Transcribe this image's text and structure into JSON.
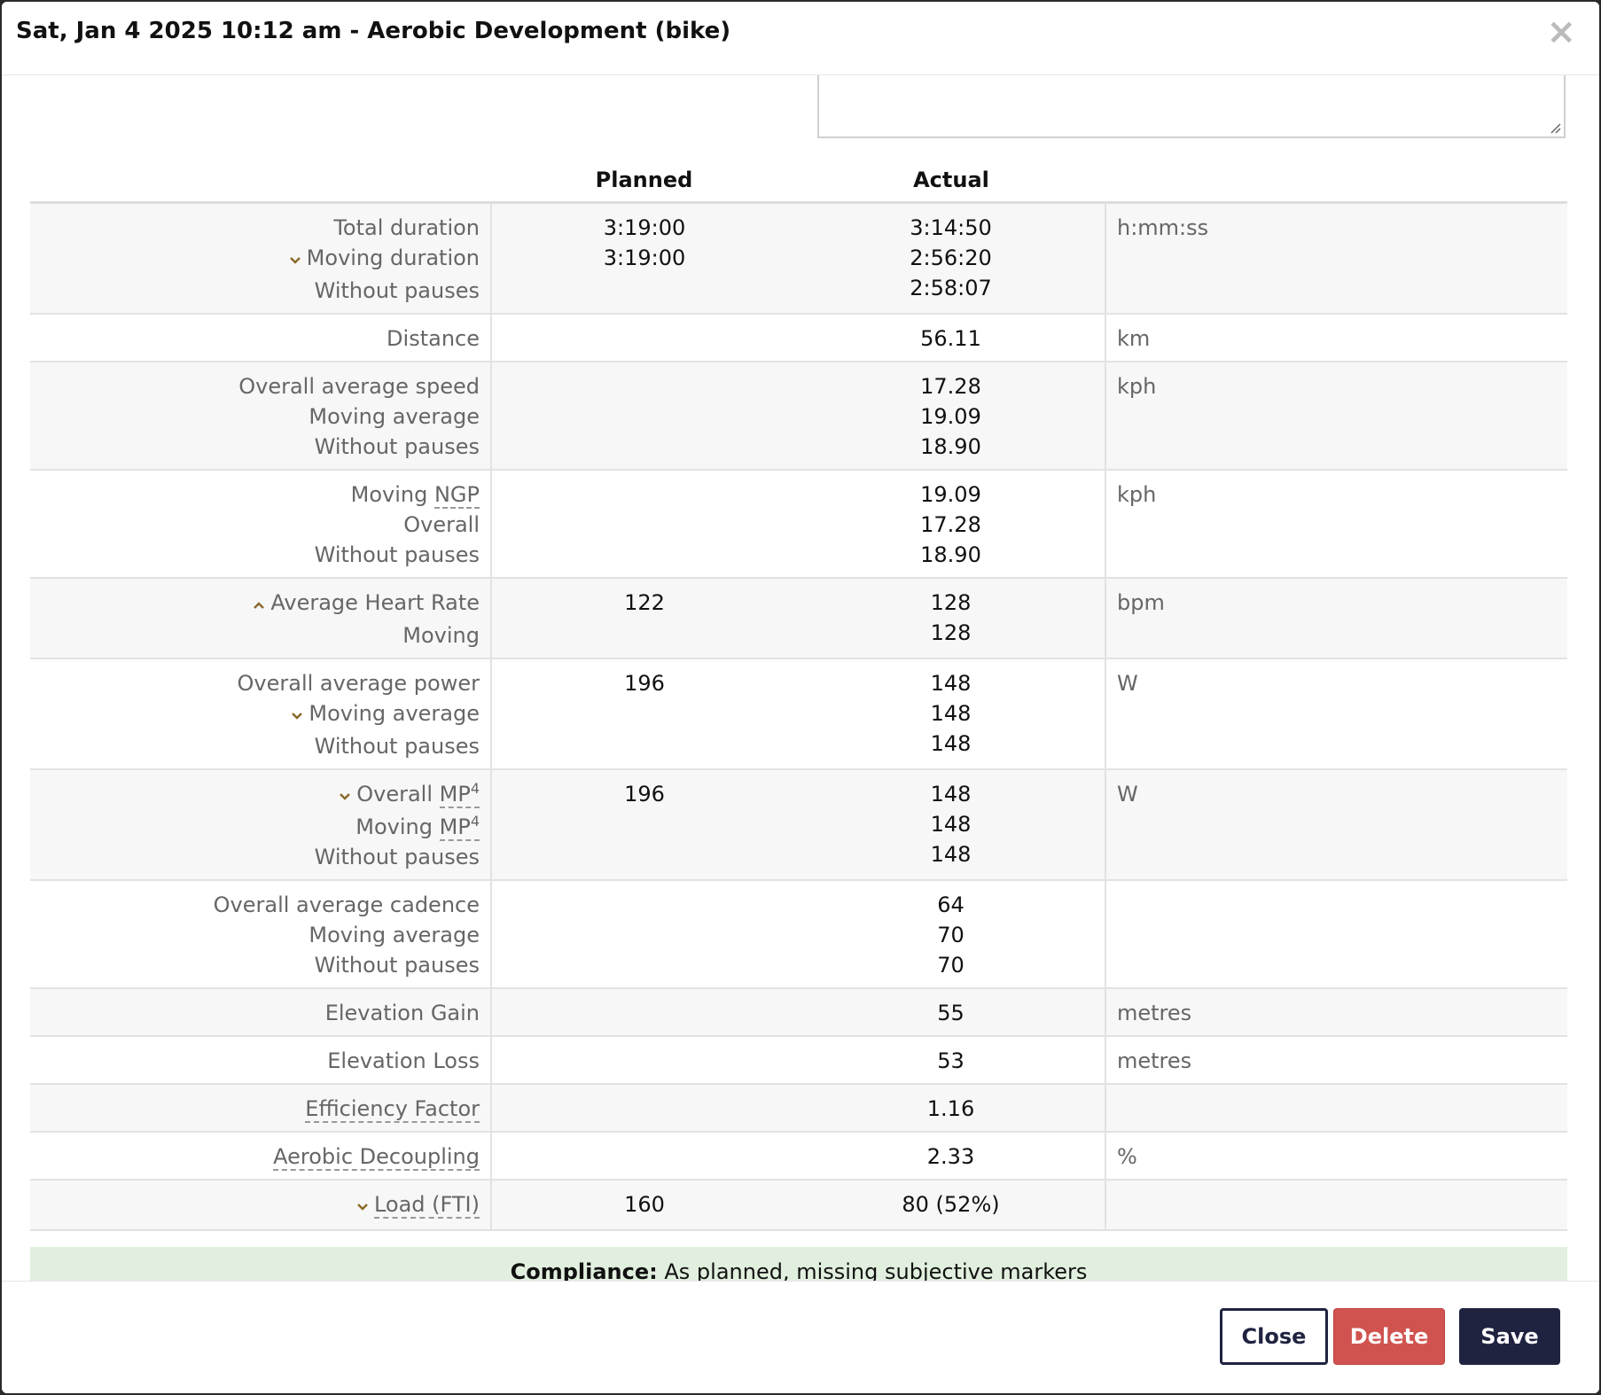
{
  "modal": {
    "title": "Sat, Jan 4 2025 10:12 am - Aerobic Development (bike)",
    "close_icon": "close-icon"
  },
  "table": {
    "headers": {
      "label": "",
      "planned": "Planned",
      "actual": "Actual",
      "unit": ""
    },
    "rows": [
      {
        "labels": [
          "Total duration",
          "Moving duration",
          "Without pauses"
        ],
        "planned": [
          "3:19:00",
          "3:19:00",
          ""
        ],
        "actual": [
          "3:14:50",
          "2:56:20",
          "2:58:07"
        ],
        "unit": "h:mm:ss"
      },
      {
        "labels": [
          "Distance"
        ],
        "planned": [
          ""
        ],
        "actual": [
          "56.11"
        ],
        "unit": "km"
      },
      {
        "labels": [
          "Overall average speed",
          "Moving average",
          "Without pauses"
        ],
        "planned": [
          "",
          "",
          ""
        ],
        "actual": [
          "17.28",
          "19.09",
          "18.90"
        ],
        "unit": "kph"
      },
      {
        "labels": [
          "Moving NGP",
          "Overall",
          "Without pauses"
        ],
        "planned": [
          "",
          "",
          ""
        ],
        "actual": [
          "19.09",
          "17.28",
          "18.90"
        ],
        "unit": "kph"
      },
      {
        "labels": [
          "Average Heart Rate",
          "Moving"
        ],
        "planned": [
          "122",
          ""
        ],
        "actual": [
          "128",
          "128"
        ],
        "unit": "bpm"
      },
      {
        "labels": [
          "Overall average power",
          "Moving average",
          "Without pauses"
        ],
        "planned": [
          "196",
          "",
          ""
        ],
        "actual": [
          "148",
          "148",
          "148"
        ],
        "unit": "W"
      },
      {
        "labels": [
          "Overall MP4",
          "Moving MP4",
          "Without pauses"
        ],
        "planned": [
          "196",
          "",
          ""
        ],
        "actual": [
          "148",
          "148",
          "148"
        ],
        "unit": "W"
      },
      {
        "labels": [
          "Overall average cadence",
          "Moving average",
          "Without pauses"
        ],
        "planned": [
          "",
          "",
          ""
        ],
        "actual": [
          "64",
          "70",
          "70"
        ],
        "unit": ""
      },
      {
        "labels": [
          "Elevation Gain"
        ],
        "planned": [
          ""
        ],
        "actual": [
          "55"
        ],
        "unit": "metres"
      },
      {
        "labels": [
          "Elevation Loss"
        ],
        "planned": [
          ""
        ],
        "actual": [
          "53"
        ],
        "unit": "metres"
      },
      {
        "labels": [
          "Efficiency Factor"
        ],
        "planned": [
          ""
        ],
        "actual": [
          "1.16"
        ],
        "unit": ""
      },
      {
        "labels": [
          "Aerobic Decoupling"
        ],
        "planned": [
          ""
        ],
        "actual": [
          "2.33"
        ],
        "unit": "%"
      },
      {
        "labels": [
          "Load (FTI)"
        ],
        "planned": [
          "160"
        ],
        "actual": [
          "80 (52%)"
        ],
        "unit": ""
      }
    ]
  },
  "labels": {
    "ngp_prefix": "Moving ",
    "ngp_abbr": "NGP",
    "mp_overall_prefix": "Overall ",
    "mp_moving_prefix": "Moving ",
    "mp_abbr": "MP",
    "mp_sup": "4",
    "load_abbr": "Load (FTI)"
  },
  "compliance": {
    "label": "Compliance",
    "separator": ":",
    "text": " As planned, missing subjective markers"
  },
  "footer": {
    "close_label": "Close",
    "delete_label": "Delete",
    "save_label": "Save"
  },
  "colors": {
    "primary": "#1f2340",
    "danger": "#d0534f",
    "compliance_bg": "#e1f0de",
    "chevron": "#8a6a2a"
  }
}
